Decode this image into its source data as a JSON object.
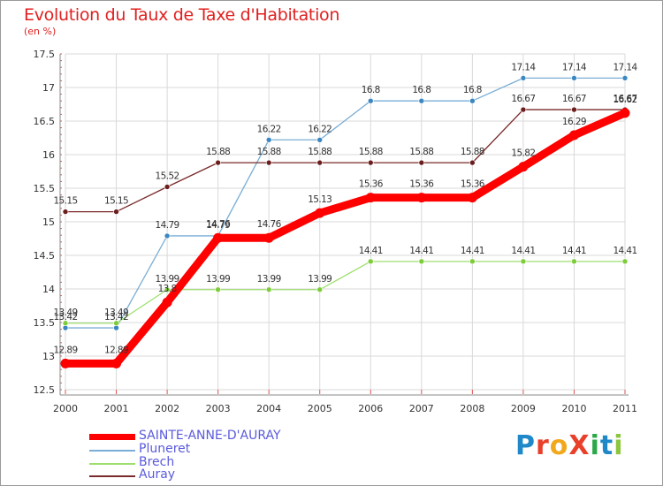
{
  "header": {
    "title": "Evolution du Taux de Taxe d'Habitation",
    "subtitle": "(en %)"
  },
  "brand": {
    "text": "ProXiti",
    "letters": [
      "P",
      "r",
      "o",
      "X",
      "i",
      "t",
      "i"
    ],
    "letter_colors": [
      "#1e88c8",
      "#e8402a",
      "#f2a81c",
      "#e8402a",
      "#2aa84a",
      "#1e88c8",
      "#8cc63f"
    ]
  },
  "chart_data": {
    "type": "line",
    "title": "Evolution du Taux de Taxe d'Habitation",
    "subtitle": "(en %)",
    "xlabel": "",
    "ylabel": "",
    "categories": [
      "2000",
      "2001",
      "2002",
      "2003",
      "2004",
      "2005",
      "2006",
      "2007",
      "2008",
      "2009",
      "2010",
      "2011"
    ],
    "ylim": [
      12.5,
      17.5
    ],
    "yticks": [
      "12.5",
      "13",
      "13.5",
      "14",
      "14.5",
      "15",
      "15.5",
      "16",
      "16.5",
      "17",
      "17.5"
    ],
    "grid": true,
    "legend": "bottom-left",
    "series": [
      {
        "name": "SAINTE-ANNE-D'AURAY",
        "color": "#ff0000",
        "marker_color": "#ff0000",
        "label_color": "#333333",
        "emphasis": true,
        "values": [
          12.89,
          12.89,
          13.8,
          14.76,
          14.76,
          15.13,
          15.36,
          15.36,
          15.36,
          15.82,
          16.29,
          16.62
        ],
        "labels": [
          "12.89",
          "12.89",
          "13.8",
          "14.76",
          "14.76",
          "15.13",
          "15.36",
          "15.36",
          "15.36",
          "15.82",
          "16.29",
          "16.62"
        ]
      },
      {
        "name": "Pluneret",
        "color": "#7aaed6",
        "marker_color": "#3a87c2",
        "label_color": "#333333",
        "emphasis": false,
        "values": [
          13.42,
          13.42,
          14.79,
          14.79,
          16.22,
          16.22,
          16.8,
          16.8,
          16.8,
          17.14,
          17.14,
          17.14
        ],
        "labels": [
          "13.42",
          "13.42",
          "14.79",
          "14.79",
          "16.22",
          "16.22",
          "16.8",
          "16.8",
          "16.8",
          "17.14",
          "17.14",
          "17.14"
        ]
      },
      {
        "name": "Brech",
        "color": "#9ddf6d",
        "marker_color": "#7dcc3a",
        "label_color": "#333333",
        "emphasis": false,
        "values": [
          13.49,
          13.49,
          13.99,
          13.99,
          13.99,
          13.99,
          14.41,
          14.41,
          14.41,
          14.41,
          14.41,
          14.41
        ],
        "labels": [
          "13.49",
          "13.49",
          "13.99",
          "13.99",
          "13.99",
          "13.99",
          "14.41",
          "14.41",
          "14.41",
          "14.41",
          "14.41",
          "14.41"
        ]
      },
      {
        "name": "Auray",
        "color": "#7a2a2a",
        "marker_color": "#6a1e1e",
        "label_color": "#333333",
        "emphasis": false,
        "values": [
          15.15,
          15.15,
          15.52,
          15.88,
          15.88,
          15.88,
          15.88,
          15.88,
          15.88,
          16.67,
          16.67,
          16.67
        ],
        "labels": [
          "15.15",
          "15.15",
          "15.52",
          "15.88",
          "15.88",
          "15.88",
          "15.88",
          "15.88",
          "15.88",
          "16.67",
          "16.67",
          "16.67"
        ]
      }
    ]
  }
}
